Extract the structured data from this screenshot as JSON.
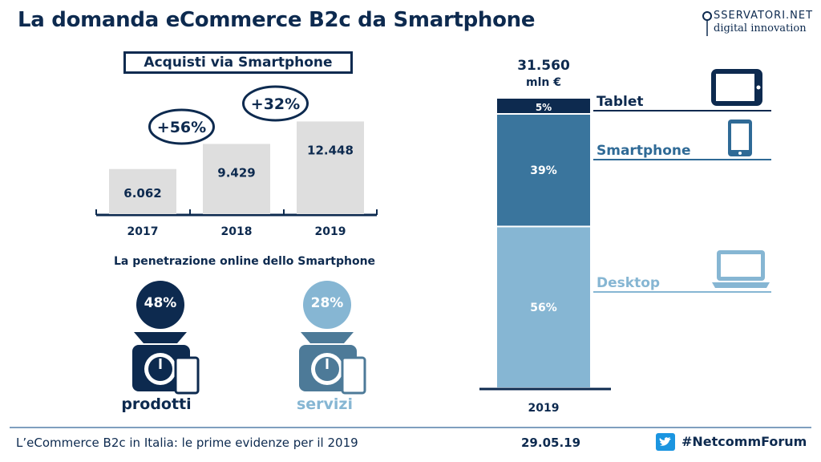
{
  "title": "La domanda eCommerce B2c da Smartphone",
  "logo": {
    "line1": "SSERVATORI.NET",
    "line2": "digital innovation",
    "mark": "O"
  },
  "colors": {
    "navy": "#0d2a4f",
    "mid_blue": "#3a759d",
    "light_blue": "#86b6d3",
    "bar_gray": "#dedede",
    "rule": "#7f9fbf"
  },
  "chart_data": [
    {
      "type": "bar",
      "title": "Acquisti via Smartphone",
      "categories": [
        "2017",
        "2018",
        "2019"
      ],
      "values": [
        6062,
        9429,
        12448
      ],
      "value_labels": [
        "6.062",
        "9.429",
        "12.448"
      ],
      "growth_labels": [
        "+56%",
        "+32%"
      ],
      "ylim": [
        0,
        14000
      ]
    },
    {
      "type": "bar",
      "stacked": true,
      "total_label": "31.560",
      "unit": "mln €",
      "categories": [
        "2019"
      ],
      "series": [
        {
          "name": "Desktop",
          "value": 56,
          "label": "56%",
          "color": "#86b6d3"
        },
        {
          "name": "Smartphone",
          "value": 39,
          "label": "39%",
          "color": "#3a759d"
        },
        {
          "name": "Tablet",
          "value": 5,
          "label": "5%",
          "color": "#0d2a4f"
        }
      ]
    }
  ],
  "penetration": {
    "title": "La penetrazione online dello Smartphone",
    "items": [
      {
        "label": "prodotti",
        "value": "48%",
        "color": "#0d2a4f",
        "icon": "scale-icon"
      },
      {
        "label": "servizi",
        "value": "28%",
        "color": "#86b6d3",
        "icon": "scale-icon"
      }
    ]
  },
  "footer": {
    "text": "L’eCommerce B2c in Italia: le prime evidenze per il 2019",
    "date": "29.05.19",
    "hashtag": "#NetcommForum",
    "icon": "twitter-icon"
  }
}
